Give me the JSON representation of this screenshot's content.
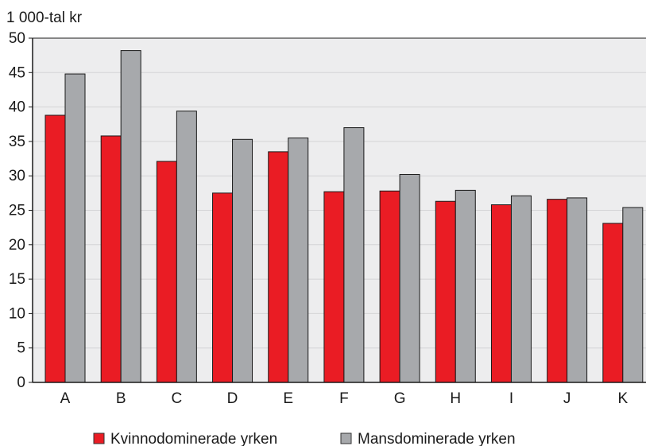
{
  "chart_data": {
    "type": "bar",
    "ylabel": "1 000-tal kr",
    "xlabel": "",
    "ylim": [
      0,
      50
    ],
    "yticks": [
      0,
      5,
      10,
      15,
      20,
      25,
      30,
      35,
      40,
      45,
      50
    ],
    "grid": "horizontal",
    "legend_position": "bottom",
    "categories": [
      "A",
      "B",
      "C",
      "D",
      "E",
      "F",
      "G",
      "H",
      "I",
      "J",
      "K"
    ],
    "series": [
      {
        "name": "Kvinnodominerade yrken",
        "color": "#ea1c24",
        "values": [
          38.8,
          35.8,
          32.1,
          27.5,
          33.5,
          27.7,
          27.8,
          26.3,
          25.8,
          26.6,
          23.1
        ]
      },
      {
        "name": "Mansdominerade yrken",
        "color": "#a7a9ac",
        "values": [
          44.8,
          48.2,
          39.4,
          35.3,
          35.5,
          37.0,
          30.2,
          27.9,
          27.1,
          26.8,
          25.4
        ]
      }
    ],
    "colors": {
      "plot_background": "#ededee",
      "gridline": "#ffffff",
      "axis": "#1a1a1a",
      "bar_border": "#1a1a1a"
    }
  }
}
